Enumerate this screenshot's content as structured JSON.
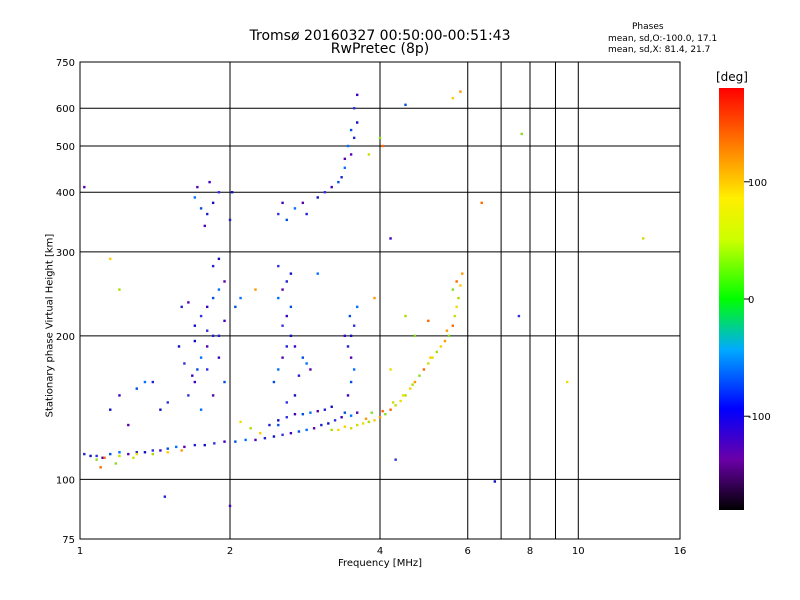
{
  "chart_data": {
    "type": "scatter",
    "title": "Tromsø 20160327 00:50:00-00:51:43",
    "subtitle": "RwPretec (8p)",
    "xlabel": "Frequency [MHz]",
    "ylabel": "Stationary phase Virtual Height [km]",
    "x_scale": "log",
    "y_scale": "log",
    "xlim": [
      1,
      16
    ],
    "ylim": [
      75,
      750
    ],
    "x_ticks": [
      1,
      2,
      4,
      6,
      8,
      10,
      16
    ],
    "x_minor_ticks": [
      7,
      9
    ],
    "y_ticks": [
      75,
      100,
      200,
      300,
      400,
      500,
      600,
      750
    ],
    "grid": true,
    "phase_stats": {
      "title": "Phases",
      "o": "mean, sd,O:-100.0, 17.1",
      "x": "mean, sd,X:  81.4, 21.7"
    },
    "colorbar": {
      "label": "[deg]",
      "ticks": [
        "100",
        "0",
        "-100"
      ],
      "tick_values": [
        100,
        0,
        -100
      ],
      "range": [
        -180,
        180
      ]
    },
    "series": [
      {
        "points": [
          [
            1.02,
            113
          ],
          [
            1.05,
            112
          ],
          [
            1.08,
            112
          ],
          [
            1.11,
            111
          ],
          [
            1.15,
            113
          ],
          [
            1.2,
            114
          ],
          [
            1.25,
            113
          ],
          [
            1.3,
            114
          ],
          [
            1.35,
            114
          ],
          [
            1.4,
            115
          ],
          [
            1.45,
            115
          ],
          [
            1.5,
            116
          ],
          [
            1.56,
            117
          ],
          [
            1.62,
            117
          ],
          [
            1.7,
            118
          ],
          [
            1.78,
            118
          ],
          [
            1.86,
            119
          ],
          [
            1.95,
            120
          ],
          [
            2.05,
            120
          ],
          [
            2.15,
            121
          ],
          [
            2.25,
            121
          ],
          [
            2.35,
            122
          ],
          [
            2.45,
            123
          ],
          [
            2.55,
            124
          ],
          [
            2.65,
            125
          ],
          [
            2.75,
            126
          ],
          [
            2.85,
            127
          ],
          [
            2.95,
            128
          ],
          [
            3.05,
            130
          ],
          [
            3.15,
            131
          ],
          [
            3.25,
            133
          ],
          [
            3.35,
            135
          ],
          [
            3.4,
            138
          ],
          [
            3.5,
            136
          ],
          [
            3.6,
            138
          ],
          [
            2.4,
            130
          ],
          [
            2.5,
            133
          ],
          [
            2.6,
            135
          ],
          [
            2.7,
            137
          ],
          [
            2.8,
            137
          ],
          [
            2.9,
            138
          ],
          [
            3.0,
            139
          ],
          [
            3.1,
            140
          ],
          [
            3.2,
            142
          ],
          [
            1.65,
            150
          ],
          [
            1.7,
            160
          ],
          [
            1.72,
            170
          ],
          [
            1.75,
            180
          ],
          [
            1.8,
            190
          ],
          [
            1.85,
            200
          ],
          [
            1.7,
            210
          ],
          [
            1.75,
            220
          ],
          [
            1.8,
            230
          ],
          [
            1.85,
            240
          ],
          [
            1.9,
            250
          ],
          [
            1.95,
            260
          ],
          [
            1.85,
            280
          ],
          [
            1.9,
            290
          ],
          [
            1.8,
            170
          ],
          [
            1.9,
            180
          ],
          [
            1.95,
            160
          ],
          [
            1.75,
            140
          ],
          [
            1.85,
            150
          ],
          [
            1.9,
            200
          ],
          [
            1.7,
            195
          ],
          [
            1.8,
            205
          ],
          [
            1.95,
            215
          ],
          [
            2.05,
            230
          ],
          [
            2.1,
            240
          ],
          [
            1.65,
            235
          ],
          [
            1.6,
            230
          ],
          [
            1.58,
            190
          ],
          [
            1.62,
            175
          ],
          [
            1.68,
            165
          ],
          [
            2.45,
            160
          ],
          [
            2.5,
            170
          ],
          [
            2.55,
            180
          ],
          [
            2.6,
            190
          ],
          [
            2.65,
            200
          ],
          [
            2.55,
            210
          ],
          [
            2.6,
            220
          ],
          [
            2.65,
            230
          ],
          [
            2.5,
            240
          ],
          [
            2.55,
            250
          ],
          [
            2.6,
            260
          ],
          [
            2.65,
            270
          ],
          [
            2.5,
            280
          ],
          [
            2.7,
            190
          ],
          [
            2.8,
            180
          ],
          [
            2.85,
            175
          ],
          [
            2.9,
            170
          ],
          [
            2.75,
            165
          ],
          [
            2.7,
            150
          ],
          [
            2.6,
            145
          ],
          [
            3.45,
            150
          ],
          [
            3.5,
            160
          ],
          [
            3.55,
            170
          ],
          [
            3.5,
            180
          ],
          [
            3.45,
            190
          ],
          [
            3.5,
            200
          ],
          [
            3.55,
            210
          ],
          [
            3.4,
            200
          ],
          [
            3.48,
            220
          ],
          [
            3.6,
            230
          ],
          [
            1.78,
            340
          ],
          [
            1.8,
            360
          ],
          [
            1.85,
            380
          ],
          [
            1.9,
            400
          ],
          [
            1.82,
            420
          ],
          [
            1.75,
            370
          ],
          [
            1.7,
            390
          ],
          [
            1.72,
            410
          ],
          [
            2.0,
            350
          ],
          [
            2.02,
            400
          ],
          [
            2.5,
            360
          ],
          [
            2.55,
            380
          ],
          [
            2.6,
            350
          ],
          [
            2.7,
            370
          ],
          [
            2.8,
            380
          ],
          [
            2.85,
            360
          ],
          [
            3.0,
            390
          ],
          [
            3.1,
            400
          ],
          [
            3.2,
            410
          ],
          [
            3.3,
            420
          ],
          [
            3.4,
            450
          ],
          [
            3.5,
            480
          ],
          [
            3.55,
            520
          ],
          [
            3.6,
            560
          ],
          [
            3.55,
            600
          ],
          [
            3.6,
            640
          ],
          [
            3.5,
            540
          ],
          [
            3.45,
            500
          ],
          [
            3.4,
            470
          ],
          [
            3.35,
            430
          ],
          [
            1.45,
            140
          ],
          [
            1.5,
            145
          ],
          [
            1.2,
            150
          ],
          [
            1.3,
            155
          ],
          [
            1.35,
            160
          ],
          [
            1.25,
            130
          ],
          [
            1.4,
            160
          ],
          [
            1.15,
            140
          ],
          [
            4.3,
            110
          ],
          [
            4.2,
            320
          ],
          [
            4.5,
            610
          ],
          [
            3.0,
            270
          ],
          [
            1.02,
            410
          ],
          [
            1.48,
            92
          ],
          [
            6.8,
            99
          ],
          [
            7.6,
            220
          ],
          [
            2.0,
            88
          ],
          [
            2.5,
            130
          ]
        ]
      },
      {
        "points": [
          [
            3.6,
            130
          ],
          [
            3.7,
            131
          ],
          [
            3.8,
            132
          ],
          [
            3.9,
            133
          ],
          [
            4.0,
            135
          ],
          [
            4.1,
            137
          ],
          [
            4.2,
            140
          ],
          [
            4.3,
            143
          ],
          [
            4.4,
            146
          ],
          [
            4.5,
            150
          ],
          [
            4.6,
            155
          ],
          [
            4.7,
            160
          ],
          [
            4.8,
            165
          ],
          [
            4.9,
            170
          ],
          [
            5.0,
            175
          ],
          [
            5.1,
            180
          ],
          [
            5.2,
            185
          ],
          [
            5.3,
            190
          ],
          [
            5.4,
            195
          ],
          [
            5.5,
            200
          ],
          [
            5.6,
            210
          ],
          [
            5.65,
            220
          ],
          [
            5.7,
            230
          ],
          [
            5.75,
            240
          ],
          [
            5.8,
            255
          ],
          [
            5.85,
            270
          ],
          [
            5.6,
            250
          ],
          [
            5.7,
            260
          ],
          [
            3.5,
            128
          ],
          [
            3.3,
            127
          ],
          [
            3.2,
            127
          ],
          [
            3.4,
            129
          ],
          [
            3.75,
            134
          ],
          [
            3.85,
            138
          ],
          [
            4.05,
            139
          ],
          [
            4.25,
            145
          ],
          [
            4.45,
            150
          ],
          [
            4.65,
            158
          ],
          [
            5.05,
            180
          ],
          [
            5.45,
            205
          ],
          [
            1.08,
            110
          ],
          [
            1.12,
            111
          ],
          [
            1.2,
            112
          ],
          [
            1.3,
            113
          ],
          [
            1.4,
            113
          ],
          [
            1.5,
            114
          ],
          [
            1.6,
            115
          ],
          [
            1.18,
            108
          ],
          [
            1.1,
            106
          ],
          [
            1.28,
            111
          ],
          [
            2.1,
            132
          ],
          [
            2.2,
            128
          ],
          [
            2.3,
            125
          ],
          [
            3.9,
            240
          ],
          [
            4.0,
            520
          ],
          [
            4.05,
            500
          ],
          [
            3.8,
            480
          ],
          [
            4.2,
            170
          ],
          [
            4.5,
            220
          ],
          [
            5.6,
            630
          ],
          [
            5.8,
            650
          ],
          [
            7.7,
            530
          ],
          [
            6.4,
            380
          ],
          [
            13.5,
            320
          ],
          [
            9.5,
            160
          ],
          [
            1.2,
            250
          ],
          [
            1.15,
            290
          ],
          [
            2.25,
            250
          ],
          [
            4.7,
            200
          ],
          [
            5.0,
            215
          ]
        ]
      }
    ]
  }
}
